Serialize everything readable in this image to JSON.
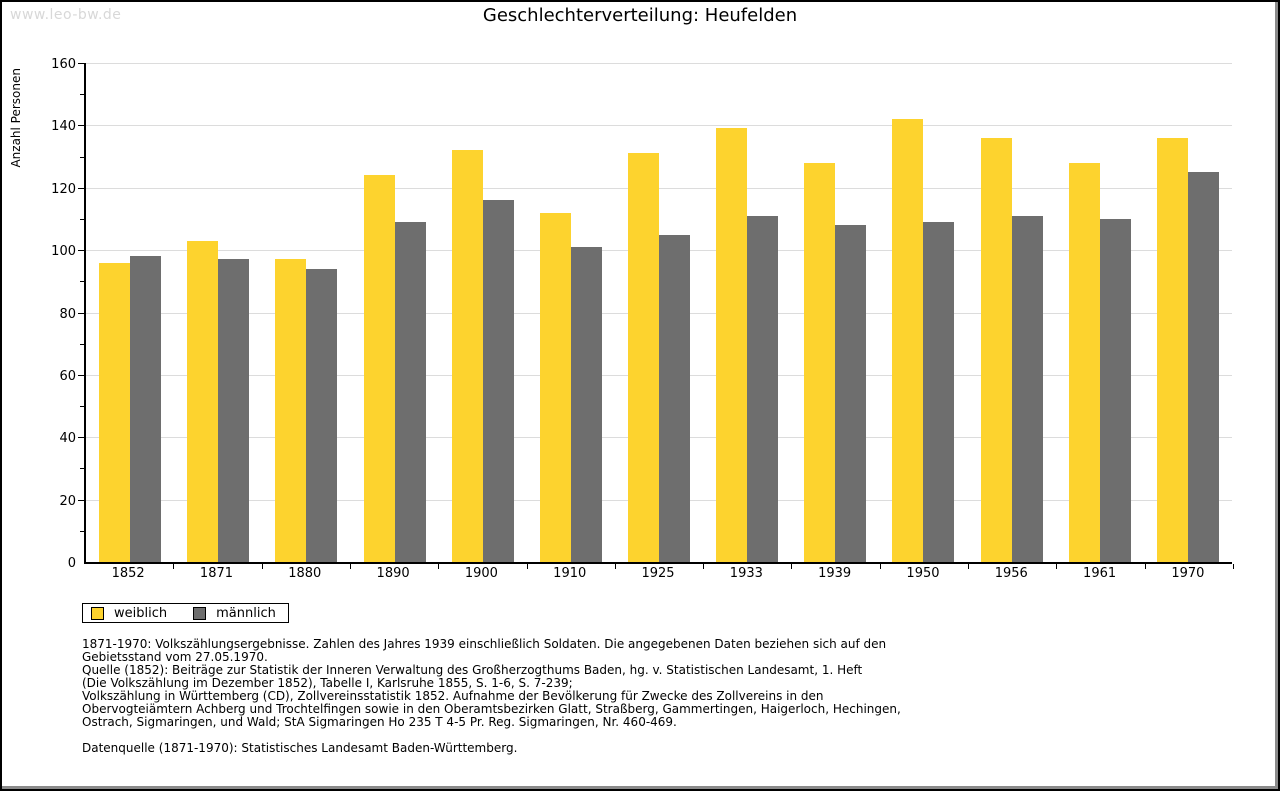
{
  "watermark": "www.leo-bw.de",
  "chart_data": {
    "type": "bar",
    "title": "Geschlechterverteilung: Heufelden",
    "xlabel": "",
    "ylabel": "Anzahl Personen",
    "ylim": [
      0,
      160
    ],
    "ytick_step": 20,
    "ytick_minor_step": 10,
    "grid": true,
    "legend_position": "bottom-left",
    "categories": [
      "1852",
      "1871",
      "1880",
      "1890",
      "1900",
      "1910",
      "1925",
      "1933",
      "1939",
      "1950",
      "1956",
      "1961",
      "1970"
    ],
    "series": [
      {
        "name": "weiblich",
        "color": "#fdd32e",
        "values": [
          96,
          103,
          97,
          124,
          132,
          112,
          131,
          139,
          128,
          142,
          136,
          128,
          136
        ]
      },
      {
        "name": "männlich",
        "color": "#6e6e6e",
        "values": [
          98,
          97,
          94,
          109,
          116,
          101,
          105,
          111,
          108,
          109,
          111,
          110,
          125
        ]
      }
    ]
  },
  "colors": {
    "gridline": "#dcdcdc",
    "axis": "#000000",
    "watermark": "#d8d8d8",
    "frame_shadow": "#8a8a8a",
    "background": "#ffffff"
  },
  "footnotes": {
    "lines": [
      "1871-1970: Volkszählungsergebnisse. Zahlen des Jahres 1939 einschließlich Soldaten. Die angegebenen Daten beziehen sich auf den",
      "Gebietsstand vom 27.05.1970.",
      "Quelle (1852): Beiträge zur Statistik der Inneren Verwaltung des Großherzogthums Baden, hg. v. Statistischen Landesamt, 1. Heft",
      "(Die Volkszählung im Dezember 1852), Tabelle I, Karlsruhe 1855, S. 1-6, S. 7-239;",
      "Volkszählung in Württemberg (CD), Zollvereinsstatistik 1852. Aufnahme der Bevölkerung für Zwecke des Zollvereins in den",
      "Obervogteiämtern Achberg und Trochtelfingen sowie in den Oberamtsbezirken Glatt, Straßberg, Gammertingen, Haigerloch, Hechingen,",
      "Ostrach, Sigmaringen, und Wald; StA Sigmaringen Ho 235 T 4-5 Pr. Reg. Sigmaringen, Nr. 460-469.",
      "",
      "Datenquelle (1871-1970): Statistisches Landesamt Baden-Württemberg."
    ]
  }
}
